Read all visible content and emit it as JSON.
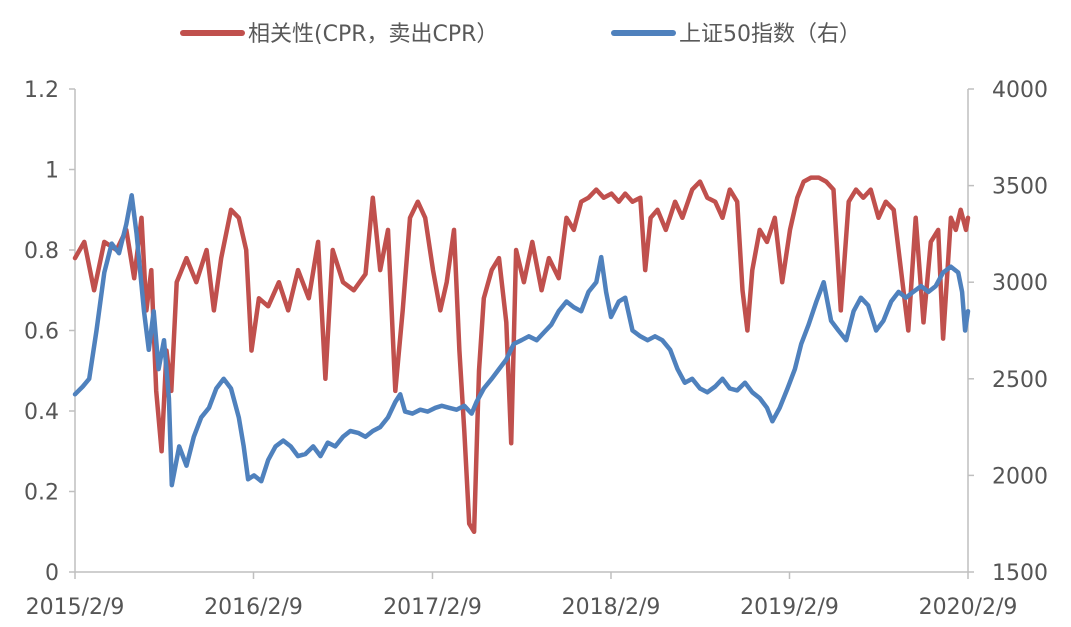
{
  "chart_data": {
    "type": "line",
    "legend_position": "top-center",
    "grid": false,
    "x_ticks": [
      "2015/2/9",
      "2016/2/9",
      "2017/2/9",
      "2018/2/9",
      "2019/2/9",
      "2020/2/9"
    ],
    "y_left": {
      "ylim": [
        0,
        1.2
      ],
      "ticks": [
        "0",
        "0.2",
        "0.4",
        "0.6",
        "0.8",
        "1",
        "1.2"
      ]
    },
    "y_right": {
      "ylim": [
        1500,
        4000
      ],
      "ticks": [
        "1500",
        "2000",
        "2500",
        "3000",
        "3500",
        "4000"
      ]
    },
    "series": [
      {
        "name": "相关性(CPR，卖出CPR）",
        "axis": "left",
        "color": "#C0504D",
        "points": [
          [
            "2015-02-09",
            0.78
          ],
          [
            "2015-02-28",
            0.82
          ],
          [
            "2015-03-20",
            0.7
          ],
          [
            "2015-04-10",
            0.82
          ],
          [
            "2015-05-05",
            0.8
          ],
          [
            "2015-05-25",
            0.85
          ],
          [
            "2015-06-10",
            0.73
          ],
          [
            "2015-06-25",
            0.88
          ],
          [
            "2015-07-05",
            0.65
          ],
          [
            "2015-07-15",
            0.75
          ],
          [
            "2015-07-25",
            0.45
          ],
          [
            "2015-08-05",
            0.3
          ],
          [
            "2015-08-15",
            0.55
          ],
          [
            "2015-08-25",
            0.45
          ],
          [
            "2015-09-05",
            0.72
          ],
          [
            "2015-09-25",
            0.78
          ],
          [
            "2015-10-15",
            0.72
          ],
          [
            "2015-11-05",
            0.8
          ],
          [
            "2015-11-20",
            0.65
          ],
          [
            "2015-12-05",
            0.78
          ],
          [
            "2015-12-25",
            0.9
          ],
          [
            "2016-01-10",
            0.88
          ],
          [
            "2016-01-25",
            0.8
          ],
          [
            "2016-02-05",
            0.55
          ],
          [
            "2016-02-20",
            0.68
          ],
          [
            "2016-03-10",
            0.66
          ],
          [
            "2016-04-01",
            0.72
          ],
          [
            "2016-04-20",
            0.65
          ],
          [
            "2016-05-10",
            0.75
          ],
          [
            "2016-06-01",
            0.68
          ],
          [
            "2016-06-20",
            0.82
          ],
          [
            "2016-07-05",
            0.48
          ],
          [
            "2016-07-20",
            0.8
          ],
          [
            "2016-08-10",
            0.72
          ],
          [
            "2016-09-01",
            0.7
          ],
          [
            "2016-09-25",
            0.74
          ],
          [
            "2016-10-10",
            0.93
          ],
          [
            "2016-10-25",
            0.75
          ],
          [
            "2016-11-10",
            0.85
          ],
          [
            "2016-11-25",
            0.45
          ],
          [
            "2016-12-10",
            0.65
          ],
          [
            "2016-12-25",
            0.88
          ],
          [
            "2017-01-10",
            0.92
          ],
          [
            "2017-01-25",
            0.88
          ],
          [
            "2017-02-10",
            0.75
          ],
          [
            "2017-02-25",
            0.65
          ],
          [
            "2017-03-10",
            0.72
          ],
          [
            "2017-03-25",
            0.85
          ],
          [
            "2017-04-05",
            0.55
          ],
          [
            "2017-04-15",
            0.35
          ],
          [
            "2017-04-25",
            0.12
          ],
          [
            "2017-05-05",
            0.1
          ],
          [
            "2017-05-15",
            0.5
          ],
          [
            "2017-05-25",
            0.68
          ],
          [
            "2017-06-10",
            0.75
          ],
          [
            "2017-06-25",
            0.78
          ],
          [
            "2017-07-10",
            0.62
          ],
          [
            "2017-07-20",
            0.32
          ],
          [
            "2017-07-30",
            0.8
          ],
          [
            "2017-08-15",
            0.72
          ],
          [
            "2017-09-01",
            0.82
          ],
          [
            "2017-09-20",
            0.7
          ],
          [
            "2017-10-05",
            0.78
          ],
          [
            "2017-10-25",
            0.73
          ],
          [
            "2017-11-10",
            0.88
          ],
          [
            "2017-11-25",
            0.85
          ],
          [
            "2017-12-10",
            0.92
          ],
          [
            "2017-12-25",
            0.93
          ],
          [
            "2018-01-10",
            0.95
          ],
          [
            "2018-01-25",
            0.93
          ],
          [
            "2018-02-10",
            0.94
          ],
          [
            "2018-02-25",
            0.92
          ],
          [
            "2018-03-10",
            0.94
          ],
          [
            "2018-03-25",
            0.92
          ],
          [
            "2018-04-10",
            0.93
          ],
          [
            "2018-04-20",
            0.75
          ],
          [
            "2018-05-01",
            0.88
          ],
          [
            "2018-05-15",
            0.9
          ],
          [
            "2018-06-01",
            0.85
          ],
          [
            "2018-06-20",
            0.92
          ],
          [
            "2018-07-05",
            0.88
          ],
          [
            "2018-07-25",
            0.95
          ],
          [
            "2018-08-10",
            0.97
          ],
          [
            "2018-08-25",
            0.93
          ],
          [
            "2018-09-10",
            0.92
          ],
          [
            "2018-09-25",
            0.88
          ],
          [
            "2018-10-10",
            0.95
          ],
          [
            "2018-10-25",
            0.92
          ],
          [
            "2018-11-05",
            0.7
          ],
          [
            "2018-11-15",
            0.6
          ],
          [
            "2018-11-25",
            0.75
          ],
          [
            "2018-12-10",
            0.85
          ],
          [
            "2018-12-25",
            0.82
          ],
          [
            "2019-01-10",
            0.88
          ],
          [
            "2019-01-25",
            0.72
          ],
          [
            "2019-02-10",
            0.85
          ],
          [
            "2019-02-25",
            0.93
          ],
          [
            "2019-03-10",
            0.97
          ],
          [
            "2019-03-25",
            0.98
          ],
          [
            "2019-04-10",
            0.98
          ],
          [
            "2019-04-25",
            0.97
          ],
          [
            "2019-05-10",
            0.95
          ],
          [
            "2019-05-25",
            0.65
          ],
          [
            "2019-06-10",
            0.92
          ],
          [
            "2019-06-25",
            0.95
          ],
          [
            "2019-07-10",
            0.93
          ],
          [
            "2019-07-25",
            0.95
          ],
          [
            "2019-08-10",
            0.88
          ],
          [
            "2019-08-25",
            0.92
          ],
          [
            "2019-09-10",
            0.9
          ],
          [
            "2019-09-25",
            0.75
          ],
          [
            "2019-10-10",
            0.6
          ],
          [
            "2019-10-25",
            0.88
          ],
          [
            "2019-11-10",
            0.62
          ],
          [
            "2019-11-25",
            0.82
          ],
          [
            "2019-12-10",
            0.85
          ],
          [
            "2019-12-20",
            0.58
          ],
          [
            "2020-01-05",
            0.88
          ],
          [
            "2020-01-15",
            0.85
          ],
          [
            "2020-01-25",
            0.9
          ],
          [
            "2020-02-05",
            0.85
          ],
          [
            "2020-02-09",
            0.88
          ]
        ]
      },
      {
        "name": "上证50指数（右）",
        "axis": "right",
        "color": "#4F81BD",
        "points": [
          [
            "2015-02-09",
            2420
          ],
          [
            "2015-02-25",
            2460
          ],
          [
            "2015-03-10",
            2500
          ],
          [
            "2015-03-25",
            2750
          ],
          [
            "2015-04-10",
            3050
          ],
          [
            "2015-04-25",
            3200
          ],
          [
            "2015-05-10",
            3150
          ],
          [
            "2015-05-25",
            3300
          ],
          [
            "2015-06-05",
            3450
          ],
          [
            "2015-06-15",
            3250
          ],
          [
            "2015-06-30",
            2850
          ],
          [
            "2015-07-10",
            2650
          ],
          [
            "2015-07-20",
            2850
          ],
          [
            "2015-07-30",
            2550
          ],
          [
            "2015-08-10",
            2700
          ],
          [
            "2015-08-20",
            2400
          ],
          [
            "2015-08-26",
            1950
          ],
          [
            "2015-09-10",
            2150
          ],
          [
            "2015-09-25",
            2050
          ],
          [
            "2015-10-10",
            2200
          ],
          [
            "2015-10-25",
            2300
          ],
          [
            "2015-11-10",
            2350
          ],
          [
            "2015-11-25",
            2450
          ],
          [
            "2015-12-10",
            2500
          ],
          [
            "2015-12-25",
            2450
          ],
          [
            "2016-01-10",
            2300
          ],
          [
            "2016-01-20",
            2150
          ],
          [
            "2016-01-29",
            1980
          ],
          [
            "2016-02-10",
            2000
          ],
          [
            "2016-02-25",
            1970
          ],
          [
            "2016-03-10",
            2080
          ],
          [
            "2016-03-25",
            2150
          ],
          [
            "2016-04-10",
            2180
          ],
          [
            "2016-04-25",
            2150
          ],
          [
            "2016-05-10",
            2100
          ],
          [
            "2016-05-25",
            2110
          ],
          [
            "2016-06-10",
            2150
          ],
          [
            "2016-06-25",
            2100
          ],
          [
            "2016-07-10",
            2170
          ],
          [
            "2016-07-25",
            2150
          ],
          [
            "2016-08-10",
            2200
          ],
          [
            "2016-08-25",
            2230
          ],
          [
            "2016-09-10",
            2220
          ],
          [
            "2016-09-25",
            2200
          ],
          [
            "2016-10-10",
            2230
          ],
          [
            "2016-10-25",
            2250
          ],
          [
            "2016-11-10",
            2300
          ],
          [
            "2016-11-25",
            2380
          ],
          [
            "2016-12-05",
            2420
          ],
          [
            "2016-12-15",
            2330
          ],
          [
            "2016-12-30",
            2320
          ],
          [
            "2017-01-15",
            2340
          ],
          [
            "2017-01-30",
            2330
          ],
          [
            "2017-02-15",
            2350
          ],
          [
            "2017-02-28",
            2360
          ],
          [
            "2017-03-15",
            2350
          ],
          [
            "2017-03-30",
            2340
          ],
          [
            "2017-04-15",
            2360
          ],
          [
            "2017-04-30",
            2320
          ],
          [
            "2017-05-10",
            2380
          ],
          [
            "2017-05-25",
            2450
          ],
          [
            "2017-06-10",
            2500
          ],
          [
            "2017-06-25",
            2550
          ],
          [
            "2017-07-10",
            2600
          ],
          [
            "2017-07-25",
            2680
          ],
          [
            "2017-08-10",
            2700
          ],
          [
            "2017-08-25",
            2720
          ],
          [
            "2017-09-10",
            2700
          ],
          [
            "2017-09-25",
            2740
          ],
          [
            "2017-10-10",
            2780
          ],
          [
            "2017-10-25",
            2850
          ],
          [
            "2017-11-10",
            2900
          ],
          [
            "2017-11-25",
            2870
          ],
          [
            "2017-12-10",
            2850
          ],
          [
            "2017-12-25",
            2950
          ],
          [
            "2018-01-10",
            3000
          ],
          [
            "2018-01-20",
            3130
          ],
          [
            "2018-01-30",
            2950
          ],
          [
            "2018-02-09",
            2820
          ],
          [
            "2018-02-25",
            2900
          ],
          [
            "2018-03-10",
            2920
          ],
          [
            "2018-03-25",
            2750
          ],
          [
            "2018-04-10",
            2720
          ],
          [
            "2018-04-25",
            2700
          ],
          [
            "2018-05-10",
            2720
          ],
          [
            "2018-05-25",
            2700
          ],
          [
            "2018-06-10",
            2650
          ],
          [
            "2018-06-25",
            2550
          ],
          [
            "2018-07-10",
            2480
          ],
          [
            "2018-07-25",
            2500
          ],
          [
            "2018-08-10",
            2450
          ],
          [
            "2018-08-25",
            2430
          ],
          [
            "2018-09-10",
            2460
          ],
          [
            "2018-09-25",
            2500
          ],
          [
            "2018-10-10",
            2450
          ],
          [
            "2018-10-25",
            2440
          ],
          [
            "2018-11-10",
            2480
          ],
          [
            "2018-11-25",
            2430
          ],
          [
            "2018-12-10",
            2400
          ],
          [
            "2018-12-25",
            2350
          ],
          [
            "2019-01-05",
            2280
          ],
          [
            "2019-01-20",
            2350
          ],
          [
            "2019-02-05",
            2450
          ],
          [
            "2019-02-20",
            2550
          ],
          [
            "2019-03-05",
            2680
          ],
          [
            "2019-03-20",
            2780
          ],
          [
            "2019-04-05",
            2900
          ],
          [
            "2019-04-20",
            3000
          ],
          [
            "2019-05-05",
            2800
          ],
          [
            "2019-05-20",
            2750
          ],
          [
            "2019-06-05",
            2700
          ],
          [
            "2019-06-20",
            2850
          ],
          [
            "2019-07-05",
            2920
          ],
          [
            "2019-07-20",
            2880
          ],
          [
            "2019-08-05",
            2750
          ],
          [
            "2019-08-20",
            2800
          ],
          [
            "2019-09-05",
            2900
          ],
          [
            "2019-09-20",
            2950
          ],
          [
            "2019-10-05",
            2920
          ],
          [
            "2019-10-20",
            2950
          ],
          [
            "2019-11-05",
            2980
          ],
          [
            "2019-11-20",
            2950
          ],
          [
            "2019-12-05",
            2980
          ],
          [
            "2019-12-20",
            3050
          ],
          [
            "2020-01-05",
            3080
          ],
          [
            "2020-01-20",
            3050
          ],
          [
            "2020-01-28",
            2950
          ],
          [
            "2020-02-03",
            2750
          ],
          [
            "2020-02-09",
            2850
          ]
        ]
      }
    ]
  }
}
